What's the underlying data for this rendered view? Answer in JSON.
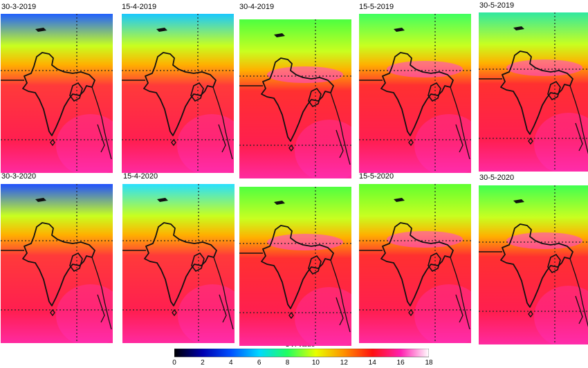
{
  "panels": [
    {
      "date": "30-3-2019",
      "uvi_color": "#ff3a3a",
      "top_color": "#2060ff"
    },
    {
      "date": "15-4-2019",
      "uvi_color": "#ff3a3a",
      "top_color": "#18c8ff"
    },
    {
      "date": "30-4-2019",
      "uvi_color": "#ff3030",
      "top_color": "#4cff40"
    },
    {
      "date": "15-5-2019",
      "uvi_color": "#ff3030",
      "top_color": "#40ff60"
    },
    {
      "date": "30-5-2019",
      "uvi_color": "#ff3030",
      "top_color": "#30e8a0"
    },
    {
      "date": "30-3-2020",
      "uvi_color": "#ff3a3a",
      "top_color": "#2050ff"
    },
    {
      "date": "15-4-2020",
      "uvi_color": "#ff3a3a",
      "top_color": "#28e0ff"
    },
    {
      "date": "30-4-2020",
      "uvi_color": "#ff3030",
      "top_color": "#50ff40"
    },
    {
      "date": "15-5-2020",
      "uvi_color": "#ff3030",
      "top_color": "#60ff30"
    },
    {
      "date": "30-5-2020",
      "uvi_color": "#ff3030",
      "top_color": "#40ff50"
    }
  ],
  "colorbar": {
    "title": "UVI value",
    "ticks": [
      "0",
      "2",
      "4",
      "6",
      "8",
      "10",
      "12",
      "14",
      "16",
      "18"
    ],
    "colors": [
      "#000000",
      "#0000b0",
      "#0050ff",
      "#00d8ff",
      "#20ff60",
      "#e8ff00",
      "#ff9000",
      "#ff1010",
      "#ff20b0",
      "#ffffff"
    ]
  }
}
